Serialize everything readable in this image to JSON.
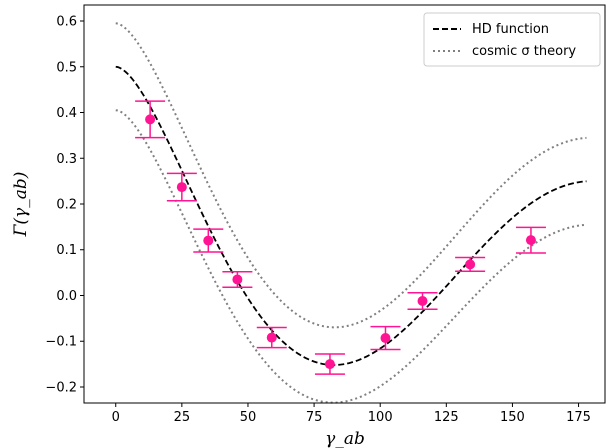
{
  "chart_data": {
    "type": "scatter",
    "xlabel": "γ_ab",
    "ylabel": "Γ(γ_ab)",
    "xlim": [
      -12,
      185
    ],
    "ylim": [
      -0.235,
      0.635
    ],
    "x_ticks": [
      0,
      25,
      50,
      75,
      100,
      125,
      150,
      175
    ],
    "y_ticks": [
      -0.2,
      -0.1,
      0.0,
      0.1,
      0.2,
      0.3,
      0.4,
      0.5,
      0.6
    ],
    "x_tick_labels": [
      "0",
      "25",
      "50",
      "75",
      "100",
      "125",
      "150",
      "175"
    ],
    "y_tick_labels": [
      "−0.2",
      "−0.1",
      "0.0",
      "0.1",
      "0.2",
      "0.3",
      "0.4",
      "0.5",
      "0.6"
    ],
    "legend_position": "top-right",
    "grid": false,
    "series": [
      {
        "name": "HD function",
        "style": "dashed",
        "color": "#000000",
        "function": "hellings-downs",
        "x_range": [
          0,
          178
        ]
      },
      {
        "name": "cosmic σ theory",
        "style": "dotted",
        "color": "#808080",
        "function": "hellings-downs-band",
        "x_range": [
          0,
          178
        ]
      }
    ],
    "points": {
      "color": "#ff1493",
      "x": [
        13,
        25,
        35,
        46,
        59,
        81,
        102,
        116,
        134,
        157
      ],
      "y": [
        0.385,
        0.237,
        0.12,
        0.035,
        -0.092,
        -0.15,
        -0.093,
        -0.012,
        0.068,
        0.121
      ],
      "err": [
        0.04,
        0.03,
        0.025,
        0.017,
        0.022,
        0.022,
        0.025,
        0.018,
        0.015,
        0.028
      ]
    }
  }
}
